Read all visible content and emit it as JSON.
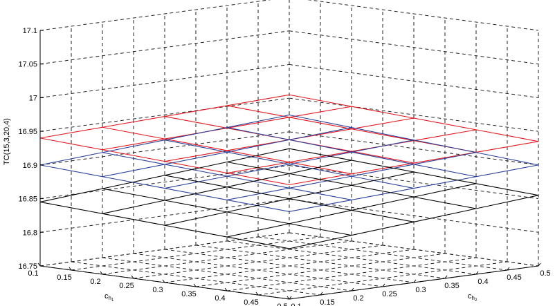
{
  "chart_data": {
    "type": "surface",
    "z_label": "TC(15,3,20,4)",
    "x_label_main": "c",
    "x_label_sub": "h",
    "x_label_subsub": "1",
    "y_label_main": "c",
    "y_label_sub": "h",
    "y_label_subsub": "2",
    "x_range": [
      0.1,
      0.5
    ],
    "y_range": [
      0.1,
      0.5
    ],
    "z_range": [
      16.75,
      17.1
    ],
    "x_ticks": [
      "0.1",
      "0.15",
      "0.2",
      "0.25",
      "0.3",
      "0.35",
      "0.4",
      "0.45",
      "0.5"
    ],
    "y_ticks": [
      "0.5",
      "0.45",
      "0.4",
      "0.35",
      "0.3",
      "0.25",
      "0.2",
      "0.15",
      "0.1"
    ],
    "z_ticks": [
      "16.75",
      "16.8",
      "16.85",
      "16.9",
      "16.95",
      "17",
      "17.05",
      "17.1"
    ],
    "grid": true,
    "surface_grid": [
      0.1,
      0.2,
      0.3,
      0.4,
      0.5
    ],
    "series": [
      {
        "color": "#e8141c",
        "z_corners": [
          16.94,
          16.92,
          16.955,
          16.935
        ]
      },
      {
        "color": "#2a3f9a",
        "z_corners": [
          16.9,
          16.88,
          16.925,
          16.9
        ]
      },
      {
        "color": "#000000",
        "z_corners": [
          16.845,
          16.825,
          16.875,
          16.855
        ]
      }
    ]
  }
}
